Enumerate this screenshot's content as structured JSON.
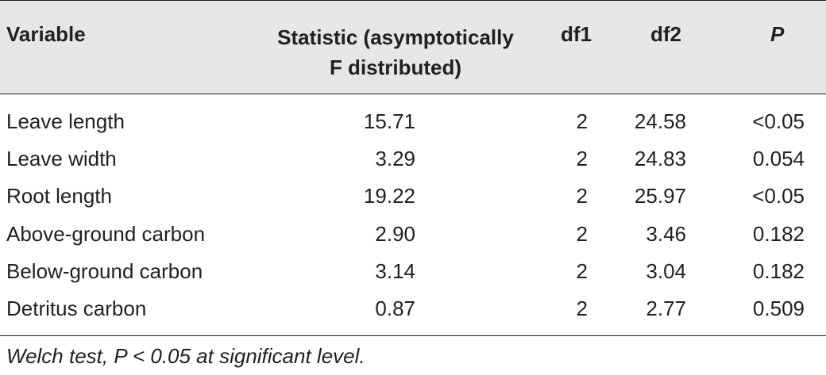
{
  "table": {
    "headers": {
      "variable": "Variable",
      "statistic_line1": "Statistic (asymptotically",
      "statistic_line2": "F distributed)",
      "df1": "df1",
      "df2": "df2",
      "p": "P"
    },
    "rows": [
      {
        "variable": "Leave length",
        "statistic": "15.71",
        "df1": "2",
        "df2": "24.58",
        "p": "<0.05"
      },
      {
        "variable": "Leave width",
        "statistic": "3.29",
        "df1": "2",
        "df2": "24.83",
        "p": "0.054"
      },
      {
        "variable": "Root length",
        "statistic": "19.22",
        "df1": "2",
        "df2": "25.97",
        "p": "<0.05"
      },
      {
        "variable": "Above-ground carbon",
        "statistic": "2.90",
        "df1": "2",
        "df2": "3.46",
        "p": "0.182"
      },
      {
        "variable": "Below-ground carbon",
        "statistic": "3.14",
        "df1": "2",
        "df2": "3.04",
        "p": "0.182"
      },
      {
        "variable": "Detritus carbon",
        "statistic": "0.87",
        "df1": "2",
        "df2": "2.77",
        "p": "0.509"
      }
    ],
    "footnote": "Welch test, P < 0.05 at significant level."
  },
  "colors": {
    "header_background": "#e6e7e8",
    "text": "#231f20",
    "rule": "#231f20"
  }
}
